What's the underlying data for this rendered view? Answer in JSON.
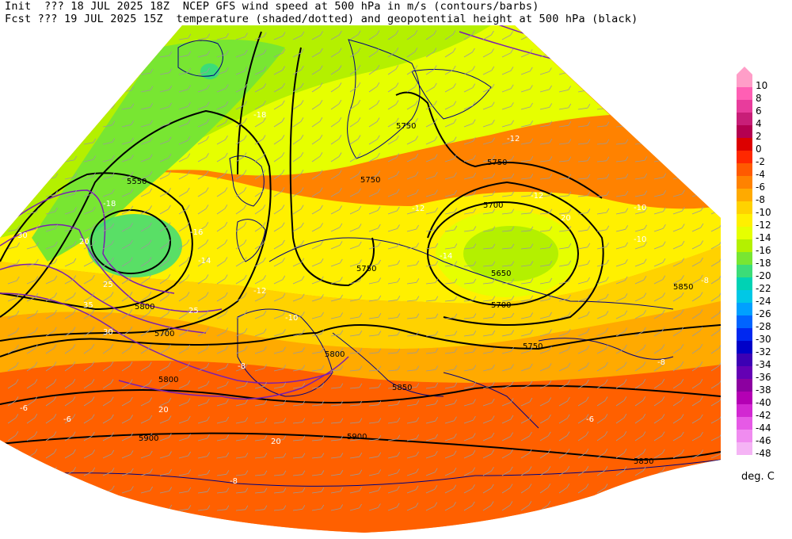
{
  "header": {
    "line1": "Init  ??? 18 JUL 2025 18Z  NCEP GFS wind speed at 500 hPa in m/s (contours/barbs)",
    "line2": "Fcst ??? 19 JUL 2025 15Z  temperature (shaded/dotted) and geopotential height at 500 hPa (black)"
  },
  "colorbar": {
    "unit": "deg. C",
    "levels": [
      {
        "label": "10",
        "color": "#ff9ec8"
      },
      {
        "label": "8",
        "color": "#ff5fb4"
      },
      {
        "label": "6",
        "color": "#e83c9c"
      },
      {
        "label": "4",
        "color": "#c81e78"
      },
      {
        "label": "2",
        "color": "#b40050"
      },
      {
        "label": "0",
        "color": "#dc0000"
      },
      {
        "label": "-2",
        "color": "#ff2800"
      },
      {
        "label": "-4",
        "color": "#ff5a00"
      },
      {
        "label": "-6",
        "color": "#ff8200"
      },
      {
        "label": "-8",
        "color": "#ffaa00"
      },
      {
        "label": "-10",
        "color": "#ffd200"
      },
      {
        "label": "-12",
        "color": "#fff000"
      },
      {
        "label": "-14",
        "color": "#e6ff00"
      },
      {
        "label": "-16",
        "color": "#b4f000"
      },
      {
        "label": "-18",
        "color": "#78e632"
      },
      {
        "label": "-20",
        "color": "#3cdc78"
      },
      {
        "label": "-22",
        "color": "#00d2b4"
      },
      {
        "label": "-24",
        "color": "#00c8e6"
      },
      {
        "label": "-26",
        "color": "#00a0ff"
      },
      {
        "label": "-28",
        "color": "#0064ff"
      },
      {
        "label": "-30",
        "color": "#0028f0"
      },
      {
        "label": "-32",
        "color": "#0000c8"
      },
      {
        "label": "-34",
        "color": "#3c00b4"
      },
      {
        "label": "-36",
        "color": "#6400b4"
      },
      {
        "label": "-38",
        "color": "#8c00a0"
      },
      {
        "label": "-40",
        "color": "#b400b4"
      },
      {
        "label": "-42",
        "color": "#d228d2"
      },
      {
        "label": "-44",
        "color": "#e65ae6"
      },
      {
        "label": "-46",
        "color": "#f08cf0"
      },
      {
        "label": "-48",
        "color": "#f5b4f5"
      }
    ]
  },
  "map": {
    "height_labels": [
      "5550",
      "5650",
      "5700",
      "5750",
      "5800",
      "5850",
      "5900"
    ],
    "temp_labels": [
      "-18",
      "-16",
      "-14",
      "-12",
      "-10",
      "-8",
      "-6"
    ],
    "wind_labels": [
      "20",
      "25",
      "30",
      "35"
    ],
    "colors": {
      "height_contour": "#000000",
      "wind_contour": "#7a1fb0",
      "temp_contour": "#ffffff",
      "coastline": "#000080"
    }
  }
}
